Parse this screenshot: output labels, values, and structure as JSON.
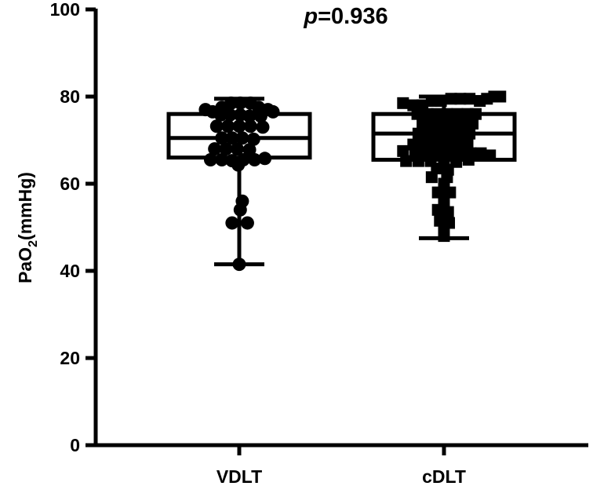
{
  "chart_data": {
    "type": "box-scatter",
    "annotation": {
      "prefix": "p",
      "value": "=0.936"
    },
    "ylabel": {
      "main": "PaO",
      "sub": "2",
      "unit": "(mmHg)"
    },
    "xlabel": "",
    "ylim": [
      0,
      100
    ],
    "yticks": [
      0,
      20,
      40,
      60,
      80,
      100
    ],
    "grid": false,
    "categories": [
      "VDLT",
      "cDLT"
    ],
    "groups": [
      {
        "name": "VDLT",
        "marker": "circle",
        "box": {
          "min": 41.5,
          "q1": 66,
          "median": 70.5,
          "q3": 76,
          "max": 79.5
        },
        "points": [
          [
            -0.165,
            77
          ],
          [
            -0.13,
            76.5
          ],
          [
            -0.085,
            77.5
          ],
          [
            -0.04,
            78.5
          ],
          [
            0.005,
            78.5
          ],
          [
            0.055,
            78.5
          ],
          [
            0.095,
            77.5
          ],
          [
            0.14,
            77
          ],
          [
            0.165,
            76.5
          ],
          [
            -0.09,
            75.8
          ],
          [
            -0.045,
            75.8
          ],
          [
            0.005,
            75.8
          ],
          [
            0.05,
            75.5
          ],
          [
            0.105,
            75.5
          ],
          [
            -0.11,
            73.2
          ],
          [
            -0.055,
            73.2
          ],
          [
            0,
            73.2
          ],
          [
            0.055,
            73.2
          ],
          [
            0.115,
            73
          ],
          [
            -0.085,
            70.5
          ],
          [
            -0.035,
            70.5
          ],
          [
            0.015,
            70.5
          ],
          [
            0.07,
            70.2
          ],
          [
            -0.12,
            68
          ],
          [
            -0.065,
            68
          ],
          [
            -0.01,
            68
          ],
          [
            0.05,
            67.8
          ],
          [
            -0.14,
            65.5
          ],
          [
            -0.085,
            65.5
          ],
          [
            -0.035,
            65.3
          ],
          [
            0.02,
            65.5
          ],
          [
            0.075,
            65.5
          ],
          [
            0.125,
            65.8
          ],
          [
            -0.005,
            64.3
          ],
          [
            0.015,
            56
          ],
          [
            0.005,
            54
          ],
          [
            -0.035,
            51
          ],
          [
            0.04,
            51
          ],
          [
            0.0,
            41.5
          ]
        ]
      },
      {
        "name": "cDLT",
        "marker": "square",
        "box": {
          "min": 47.5,
          "q1": 65.5,
          "median": 71.5,
          "q3": 76,
          "max": 80
        },
        "points": [
          [
            -0.2,
            78.5
          ],
          [
            -0.15,
            78
          ],
          [
            -0.105,
            78
          ],
          [
            -0.06,
            79
          ],
          [
            -0.015,
            79
          ],
          [
            0.035,
            79.5
          ],
          [
            0.08,
            79.5
          ],
          [
            0.125,
            79.5
          ],
          [
            0.175,
            79
          ],
          [
            0.21,
            79.5
          ],
          [
            0.245,
            80
          ],
          [
            0.275,
            80
          ],
          [
            -0.13,
            76
          ],
          [
            -0.08,
            76
          ],
          [
            -0.035,
            76
          ],
          [
            0.015,
            76
          ],
          [
            0.065,
            76
          ],
          [
            0.115,
            76
          ],
          [
            0.155,
            76
          ],
          [
            -0.105,
            73.8
          ],
          [
            -0.055,
            73.8
          ],
          [
            0.0,
            73.8
          ],
          [
            0.05,
            73.5
          ],
          [
            0.1,
            73.5
          ],
          [
            0.14,
            73.8
          ],
          [
            -0.125,
            71.5
          ],
          [
            -0.075,
            71.5
          ],
          [
            -0.025,
            71.5
          ],
          [
            0.025,
            71.5
          ],
          [
            0.075,
            71.3
          ],
          [
            0.125,
            71.5
          ],
          [
            -0.15,
            69
          ],
          [
            -0.095,
            69
          ],
          [
            -0.04,
            69
          ],
          [
            0.01,
            69
          ],
          [
            0.06,
            69
          ],
          [
            0.115,
            69
          ],
          [
            -0.2,
            67.5
          ],
          [
            -0.14,
            67.2
          ],
          [
            -0.085,
            67
          ],
          [
            -0.03,
            67
          ],
          [
            0.025,
            67
          ],
          [
            0.075,
            67
          ],
          [
            0.13,
            67
          ],
          [
            0.18,
            67
          ],
          [
            0.225,
            66.5
          ],
          [
            -0.185,
            65.2
          ],
          [
            -0.125,
            65.2
          ],
          [
            -0.065,
            65.2
          ],
          [
            0.0,
            65
          ],
          [
            0.06,
            65
          ],
          [
            0.12,
            65.5
          ],
          [
            -0.035,
            63.5
          ],
          [
            0.02,
            63.2
          ],
          [
            -0.06,
            61.5
          ],
          [
            0.015,
            61.5
          ],
          [
            0.0,
            60
          ],
          [
            -0.03,
            58
          ],
          [
            0.03,
            58
          ],
          [
            0.0,
            56
          ],
          [
            -0.03,
            54
          ],
          [
            0.02,
            53.5
          ],
          [
            -0.02,
            51.5
          ],
          [
            0.025,
            51
          ],
          [
            0.0,
            49
          ],
          [
            0.0,
            48
          ]
        ]
      }
    ]
  }
}
